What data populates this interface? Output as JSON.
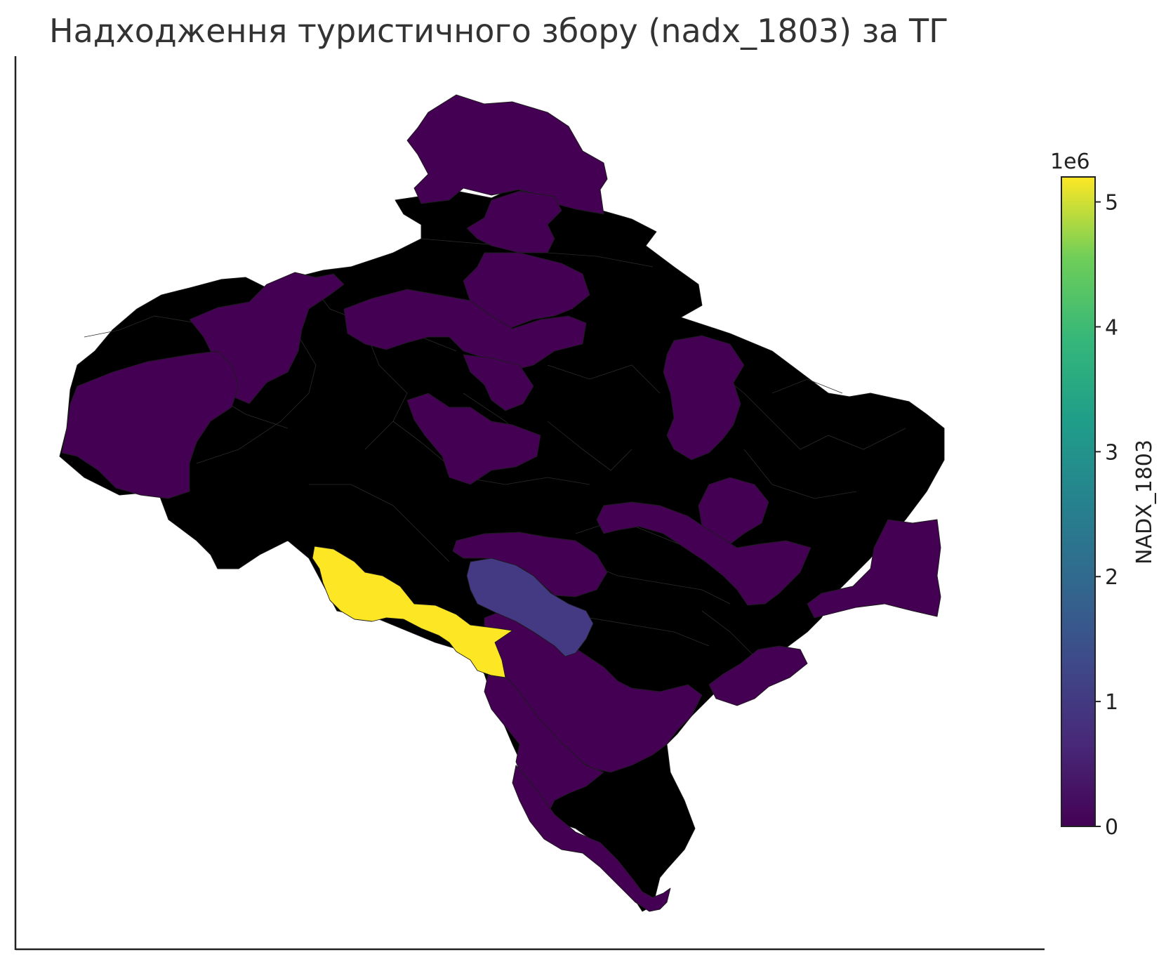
{
  "title": "Надходження туристичного збору (nadx_1803) за ТГ",
  "colors": {
    "no_data": "#e6e6e6",
    "border": "#1a1a1a",
    "axis": "#222222",
    "low": "#440154",
    "mid_low": "#443983",
    "high": "#fde725"
  },
  "colorbar": {
    "label": "NADX_1803",
    "multiplier": "1e6",
    "colormap": "viridis",
    "range": [
      0,
      5.2
    ],
    "ticks": [
      "0",
      "1",
      "2",
      "3",
      "4",
      "5"
    ]
  },
  "map_data": {
    "type": "choropleth",
    "variable": "nadx_1803",
    "units_multiplier": 1000000,
    "legend_placement": "right",
    "regions_with_data": [
      {
        "id": "north-top",
        "value": 0.0
      },
      {
        "id": "north-mid",
        "value": 0.0
      },
      {
        "id": "north-lower",
        "value": 0.0
      },
      {
        "id": "center-north-band",
        "value": 0.0
      },
      {
        "id": "west-notch",
        "value": 0.0
      },
      {
        "id": "west-big",
        "value": 0.0
      },
      {
        "id": "center-diagonal",
        "value": 0.0
      },
      {
        "id": "center-hook",
        "value": 0.0
      },
      {
        "id": "east-north",
        "value": 0.0
      },
      {
        "id": "east-center",
        "value": 0.0
      },
      {
        "id": "east-band",
        "value": 0.0
      },
      {
        "id": "east-far",
        "value": 0.0
      },
      {
        "id": "east-south",
        "value": 0.0
      },
      {
        "id": "center-south-top",
        "value": 0.0
      },
      {
        "id": "south-mountain-1",
        "value": 0.0
      },
      {
        "id": "south-mountain-2",
        "value": 0.0
      },
      {
        "id": "south-tail",
        "value": 0.0
      },
      {
        "id": "south-blue",
        "value": 1.2
      },
      {
        "id": "southwest-yellow",
        "value": 5.2
      }
    ]
  }
}
